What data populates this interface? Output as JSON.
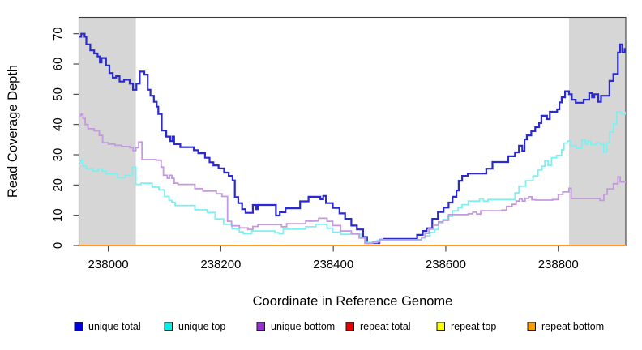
{
  "chart_data": {
    "type": "line",
    "subtype": "step-coverage-plot",
    "title": "",
    "xlabel": "Coordinate in Reference Genome",
    "ylabel": "Read Coverage Depth",
    "xlim": [
      237948,
      238920
    ],
    "ylim": [
      0,
      75.4
    ],
    "x_ticks": [
      238000,
      238200,
      238400,
      238600,
      238800
    ],
    "x_tick_labels": [
      "238000",
      "238200",
      "238400",
      "238600",
      "238800"
    ],
    "y_ticks": [
      0,
      10,
      20,
      30,
      40,
      50,
      60,
      70
    ],
    "y_tick_labels": [
      "0",
      "10",
      "20",
      "30",
      "40",
      "50",
      "60",
      "70"
    ],
    "grid": false,
    "legend_position": "bottom",
    "shade_color": "#d6d6d6",
    "shaded_regions": [
      {
        "x0": 237948,
        "x1": 238049
      },
      {
        "x0": 238819,
        "x1": 238920
      }
    ],
    "series": [
      {
        "name": "unique total",
        "color": "#2a2ad0",
        "legend_color": "#0000e6",
        "width": 2.2,
        "points": [
          [
            237948,
            69
          ],
          [
            237952,
            70
          ],
          [
            237958,
            69
          ],
          [
            237961,
            66.5
          ],
          [
            237968,
            64.5
          ],
          [
            237975,
            63.5
          ],
          [
            237981,
            62.5
          ],
          [
            237985,
            60.5
          ],
          [
            237988,
            62
          ],
          [
            237996,
            59.5
          ],
          [
            238002,
            57
          ],
          [
            238008,
            55.5
          ],
          [
            238014,
            56
          ],
          [
            238020,
            54.2
          ],
          [
            238028,
            54.8
          ],
          [
            238038,
            53.5
          ],
          [
            238044,
            51.5
          ],
          [
            238050,
            53.5
          ],
          [
            238056,
            57.5
          ],
          [
            238064,
            56.5
          ],
          [
            238070,
            51.5
          ],
          [
            238075,
            49.5
          ],
          [
            238081,
            47.5
          ],
          [
            238086,
            45.9
          ],
          [
            238089,
            43.5
          ],
          [
            238095,
            38
          ],
          [
            238103,
            36
          ],
          [
            238110,
            34.5
          ],
          [
            238114,
            36
          ],
          [
            238117,
            33.5
          ],
          [
            238128,
            32.5
          ],
          [
            238152,
            31.5
          ],
          [
            238160,
            30.5
          ],
          [
            238172,
            29
          ],
          [
            238180,
            27.5
          ],
          [
            238187,
            26.5
          ],
          [
            238196,
            25.5
          ],
          [
            238206,
            24.1
          ],
          [
            238214,
            23
          ],
          [
            238221,
            21.5
          ],
          [
            238225,
            16
          ],
          [
            238231,
            14
          ],
          [
            238238,
            12
          ],
          [
            238244,
            10.8
          ],
          [
            238257,
            13.4
          ],
          [
            238263,
            12
          ],
          [
            238266,
            13.4
          ],
          [
            238290,
            13.4
          ],
          [
            238298,
            9.9
          ],
          [
            238305,
            11
          ],
          [
            238315,
            12.3
          ],
          [
            238341,
            14.6
          ],
          [
            238356,
            16.1
          ],
          [
            238377,
            15.3
          ],
          [
            238382,
            16.4
          ],
          [
            238387,
            14
          ],
          [
            238399,
            12.4
          ],
          [
            238411,
            10.6
          ],
          [
            238421,
            8.8
          ],
          [
            238432,
            6.6
          ],
          [
            238442,
            5.3
          ],
          [
            238453,
            2.8
          ],
          [
            238460,
            0.8
          ],
          [
            238482,
            1.9
          ],
          [
            238490,
            2.2
          ],
          [
            238549,
            3.5
          ],
          [
            238559,
            4.8
          ],
          [
            238566,
            5.7
          ],
          [
            238576,
            8.8
          ],
          [
            238586,
            11.1
          ],
          [
            238596,
            12.5
          ],
          [
            238605,
            14.2
          ],
          [
            238612,
            16.1
          ],
          [
            238619,
            18.2
          ],
          [
            238623,
            21.4
          ],
          [
            238629,
            23
          ],
          [
            238639,
            23.8
          ],
          [
            238672,
            25.4
          ],
          [
            238683,
            27.6
          ],
          [
            238711,
            29.5
          ],
          [
            238723,
            30.8
          ],
          [
            238730,
            33
          ],
          [
            238736,
            31.3
          ],
          [
            238740,
            35.1
          ],
          [
            238744,
            36.4
          ],
          [
            238752,
            37.8
          ],
          [
            238759,
            39.1
          ],
          [
            238766,
            40.5
          ],
          [
            238770,
            42.9
          ],
          [
            238780,
            41.8
          ],
          [
            238785,
            44.2
          ],
          [
            238798,
            45
          ],
          [
            238802,
            47.3
          ],
          [
            238806,
            49
          ],
          [
            238812,
            51
          ],
          [
            238819,
            50
          ],
          [
            238824,
            48.2
          ],
          [
            238831,
            47.2
          ],
          [
            238845,
            48.2
          ],
          [
            238855,
            50.4
          ],
          [
            238860,
            49
          ],
          [
            238864,
            50
          ],
          [
            238871,
            47.5
          ],
          [
            238876,
            49.5
          ],
          [
            238886,
            49.5
          ],
          [
            238891,
            54.4
          ],
          [
            238898,
            56.7
          ],
          [
            238906,
            63.8
          ],
          [
            238910,
            66.5
          ],
          [
            238914,
            63.8
          ],
          [
            238918,
            65
          ],
          [
            238920,
            65
          ]
        ]
      },
      {
        "name": "unique top",
        "color": "#7fefef",
        "legend_color": "#00eeee",
        "width": 1.8,
        "points": [
          [
            237948,
            27.5
          ],
          [
            237952,
            28.2
          ],
          [
            237955,
            26.2
          ],
          [
            237961,
            25.4
          ],
          [
            237972,
            24.6
          ],
          [
            237982,
            25.4
          ],
          [
            237989,
            24.6
          ],
          [
            237996,
            23.7
          ],
          [
            238010,
            23.7
          ],
          [
            238016,
            22.4
          ],
          [
            238030,
            23.2
          ],
          [
            238043,
            25.9
          ],
          [
            238049,
            20.2
          ],
          [
            238058,
            20.6
          ],
          [
            238078,
            19.3
          ],
          [
            238090,
            18.4
          ],
          [
            238100,
            16.2
          ],
          [
            238108,
            14.9
          ],
          [
            238113,
            14.3
          ],
          [
            238119,
            13.2
          ],
          [
            238154,
            11.8
          ],
          [
            238176,
            10.9
          ],
          [
            238190,
            8.8
          ],
          [
            238205,
            7
          ],
          [
            238220,
            5.5
          ],
          [
            238233,
            4.5
          ],
          [
            238240,
            3.9
          ],
          [
            238255,
            4.8
          ],
          [
            238296,
            4.2
          ],
          [
            238304,
            3.9
          ],
          [
            238311,
            5.4
          ],
          [
            238351,
            6.2
          ],
          [
            238369,
            7
          ],
          [
            238389,
            5.7
          ],
          [
            238399,
            4.4
          ],
          [
            238413,
            3.7
          ],
          [
            238449,
            2.5
          ],
          [
            238458,
            1
          ],
          [
            238478,
            1.7
          ],
          [
            238550,
            1.7
          ],
          [
            238557,
            2.5
          ],
          [
            238563,
            3.2
          ],
          [
            238572,
            4.3
          ],
          [
            238580,
            5.3
          ],
          [
            238587,
            7.5
          ],
          [
            238595,
            8.6
          ],
          [
            238603,
            9.7
          ],
          [
            238612,
            11.5
          ],
          [
            238622,
            12.5
          ],
          [
            238629,
            13.5
          ],
          [
            238640,
            14.7
          ],
          [
            238660,
            15.4
          ],
          [
            238667,
            14.7
          ],
          [
            238675,
            15.2
          ],
          [
            238711,
            15.2
          ],
          [
            238723,
            17.4
          ],
          [
            238730,
            19.6
          ],
          [
            238742,
            21.4
          ],
          [
            238755,
            23
          ],
          [
            238764,
            25
          ],
          [
            238771,
            26.2
          ],
          [
            238776,
            28
          ],
          [
            238782,
            26.5
          ],
          [
            238788,
            29
          ],
          [
            238797,
            29.8
          ],
          [
            238806,
            31.6
          ],
          [
            238810,
            33.9
          ],
          [
            238816,
            34.5
          ],
          [
            238822,
            33
          ],
          [
            238832,
            32.2
          ],
          [
            238842,
            34.9
          ],
          [
            238848,
            33.5
          ],
          [
            238852,
            34.5
          ],
          [
            238858,
            33.4
          ],
          [
            238868,
            34
          ],
          [
            238875,
            33.4
          ],
          [
            238881,
            30.9
          ],
          [
            238886,
            34
          ],
          [
            238891,
            37.5
          ],
          [
            238898,
            40.2
          ],
          [
            238904,
            44.2
          ],
          [
            238912,
            43.5
          ],
          [
            238920,
            44.2
          ]
        ]
      },
      {
        "name": "unique bottom",
        "color": "#c49ade",
        "legend_color": "#9b30d0",
        "width": 1.8,
        "points": [
          [
            237948,
            43
          ],
          [
            237952,
            43.5
          ],
          [
            237955,
            42
          ],
          [
            237959,
            40
          ],
          [
            237964,
            38.6
          ],
          [
            237975,
            37.9
          ],
          [
            237984,
            36.4
          ],
          [
            237990,
            34
          ],
          [
            238000,
            33.5
          ],
          [
            238012,
            33.1
          ],
          [
            238024,
            32.7
          ],
          [
            238038,
            32.3
          ],
          [
            238044,
            31.4
          ],
          [
            238049,
            32.3
          ],
          [
            238054,
            34.2
          ],
          [
            238060,
            28.4
          ],
          [
            238085,
            28.2
          ],
          [
            238094,
            25.9
          ],
          [
            238098,
            23.2
          ],
          [
            238105,
            22.2
          ],
          [
            238109,
            23.2
          ],
          [
            238113,
            22.2
          ],
          [
            238117,
            20.6
          ],
          [
            238124,
            20.2
          ],
          [
            238154,
            18.8
          ],
          [
            238168,
            18
          ],
          [
            238192,
            17.1
          ],
          [
            238202,
            16.2
          ],
          [
            238212,
            8
          ],
          [
            238219,
            6.5
          ],
          [
            238233,
            5.8
          ],
          [
            238248,
            5.3
          ],
          [
            238257,
            6.3
          ],
          [
            238266,
            6.9
          ],
          [
            238308,
            6.2
          ],
          [
            238317,
            7.2
          ],
          [
            238351,
            8.1
          ],
          [
            238374,
            9
          ],
          [
            238389,
            8
          ],
          [
            238399,
            6.6
          ],
          [
            238413,
            4.8
          ],
          [
            238432,
            3.9
          ],
          [
            238446,
            2.5
          ],
          [
            238456,
            0.7
          ],
          [
            238470,
            1.2
          ],
          [
            238483,
            1.9
          ],
          [
            238550,
            1.9
          ],
          [
            238557,
            2.7
          ],
          [
            238563,
            4
          ],
          [
            238570,
            5.4
          ],
          [
            238578,
            6.7
          ],
          [
            238587,
            7.8
          ],
          [
            238595,
            8.3
          ],
          [
            238605,
            10.2
          ],
          [
            238640,
            10.5
          ],
          [
            238648,
            11
          ],
          [
            238655,
            10.4
          ],
          [
            238662,
            11.5
          ],
          [
            238700,
            11.7
          ],
          [
            238708,
            12.9
          ],
          [
            238718,
            13.6
          ],
          [
            238725,
            14.7
          ],
          [
            238731,
            15.4
          ],
          [
            238736,
            14.7
          ],
          [
            238741,
            15.6
          ],
          [
            238747,
            16.1
          ],
          [
            238753,
            15.1
          ],
          [
            238760,
            15
          ],
          [
            238790,
            15.2
          ],
          [
            238800,
            16.9
          ],
          [
            238808,
            17.7
          ],
          [
            238819,
            18.9
          ],
          [
            238823,
            15.5
          ],
          [
            238874,
            14.9
          ],
          [
            238881,
            16.9
          ],
          [
            238887,
            18.7
          ],
          [
            238898,
            20.4
          ],
          [
            238906,
            22.7
          ],
          [
            238910,
            21
          ],
          [
            238920,
            21.2
          ]
        ]
      },
      {
        "name": "repeat total",
        "color": "#e60000",
        "legend_color": "#e60000",
        "width": 1.5,
        "points": [
          [
            237948,
            0
          ],
          [
            238920,
            0
          ]
        ]
      },
      {
        "name": "repeat top",
        "color": "#ffff00",
        "legend_color": "#ffff00",
        "width": 1.5,
        "points": [
          [
            237948,
            0
          ],
          [
            238920,
            0
          ]
        ]
      },
      {
        "name": "repeat bottom",
        "color": "#ff9d1a",
        "legend_color": "#ff9900",
        "width": 1.9,
        "points": [
          [
            237948,
            0
          ],
          [
            238920,
            0
          ]
        ]
      }
    ]
  }
}
